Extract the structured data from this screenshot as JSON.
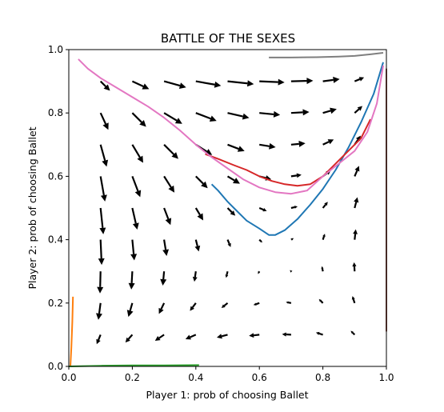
{
  "colors": {
    "background": "#ffffff",
    "arrows": "#000000",
    "trajectory_blue": "#1f77b4",
    "trajectory_orange": "#ff7f0e",
    "trajectory_green": "#2ca02c",
    "trajectory_red": "#d62728",
    "trajectory_brown": "#8c564b",
    "trajectory_pink": "#e377c2",
    "trajectory_gray": "#7f7f7f"
  },
  "chart_data": {
    "type": "quiver",
    "title": "BATTLE OF THE SEXES",
    "xlabel": "Player 1: prob of choosing Ballet",
    "ylabel": "Player 2: prob of choosing Ballet",
    "xlim": [
      0,
      1
    ],
    "ylim": [
      0,
      1
    ],
    "grid": false,
    "legend": "none",
    "x_ticks": [
      0.0,
      0.2,
      0.4,
      0.6,
      0.8,
      1.0
    ],
    "y_ticks": [
      0.0,
      0.2,
      0.4,
      0.6,
      0.8,
      1.0
    ],
    "x_tick_labels": [
      "0.0",
      "0.2",
      "0.4",
      "0.6",
      "0.8",
      "1.0"
    ],
    "y_tick_labels": [
      "0.0",
      "0.2",
      "0.4",
      "0.6",
      "0.8",
      "1.0"
    ],
    "quiver_grid": [
      0.1,
      0.2,
      0.3,
      0.4,
      0.5,
      0.6,
      0.7,
      0.8,
      0.9
    ],
    "quiver_field": "replicator dynamics, payoffs (2,1) on (Ballet,Ballet) and (1,2) on (Football,Football)",
    "trajectories": [
      {
        "color": "#1f77b4",
        "x": [
          0.45,
          0.47,
          0.5,
          0.53,
          0.56,
          0.6,
          0.63,
          0.65,
          0.68,
          0.72,
          0.76,
          0.8,
          0.84,
          0.88,
          0.92,
          0.96,
          0.99
        ],
        "y": [
          0.575,
          0.555,
          0.52,
          0.49,
          0.46,
          0.435,
          0.415,
          0.415,
          0.43,
          0.465,
          0.51,
          0.56,
          0.62,
          0.69,
          0.77,
          0.86,
          0.96
        ]
      },
      {
        "color": "#d62728",
        "x": [
          0.43,
          0.47,
          0.52,
          0.56,
          0.6,
          0.64,
          0.68,
          0.72,
          0.76,
          0.8,
          0.84,
          0.88,
          0.92,
          0.95
        ],
        "y": [
          0.67,
          0.655,
          0.635,
          0.62,
          0.6,
          0.585,
          0.575,
          0.57,
          0.575,
          0.6,
          0.64,
          0.68,
          0.72,
          0.78
        ]
      },
      {
        "color": "#e377c2",
        "x": [
          0.03,
          0.06,
          0.1,
          0.15,
          0.2,
          0.25,
          0.3,
          0.35,
          0.4,
          0.45,
          0.5,
          0.55,
          0.6,
          0.65,
          0.7,
          0.75,
          0.8,
          0.85,
          0.9,
          0.94,
          0.97,
          0.99
        ],
        "y": [
          0.97,
          0.94,
          0.91,
          0.88,
          0.85,
          0.82,
          0.785,
          0.745,
          0.7,
          0.66,
          0.625,
          0.59,
          0.565,
          0.55,
          0.545,
          0.555,
          0.6,
          0.64,
          0.68,
          0.74,
          0.83,
          0.95
        ]
      },
      {
        "color": "#ff7f0e",
        "x": [
          0.005,
          0.008,
          0.011,
          0.013
        ],
        "y": [
          0.0,
          0.06,
          0.14,
          0.22
        ]
      },
      {
        "color": "#2ca02c",
        "x": [
          0.0,
          0.1,
          0.2,
          0.3,
          0.41
        ],
        "y": [
          0.0,
          0.002,
          0.003,
          0.003,
          0.004
        ]
      },
      {
        "color": "#7f7f7f",
        "x": [
          0.63,
          0.7,
          0.78,
          0.85,
          0.9,
          0.95,
          0.99
        ],
        "y": [
          0.975,
          0.975,
          0.976,
          0.978,
          0.98,
          0.985,
          0.99
        ]
      },
      {
        "color": "#8c564b",
        "x": [
          1.0,
          1.0,
          1.0
        ],
        "y": [
          0.11,
          0.5,
          0.94
        ]
      }
    ]
  }
}
